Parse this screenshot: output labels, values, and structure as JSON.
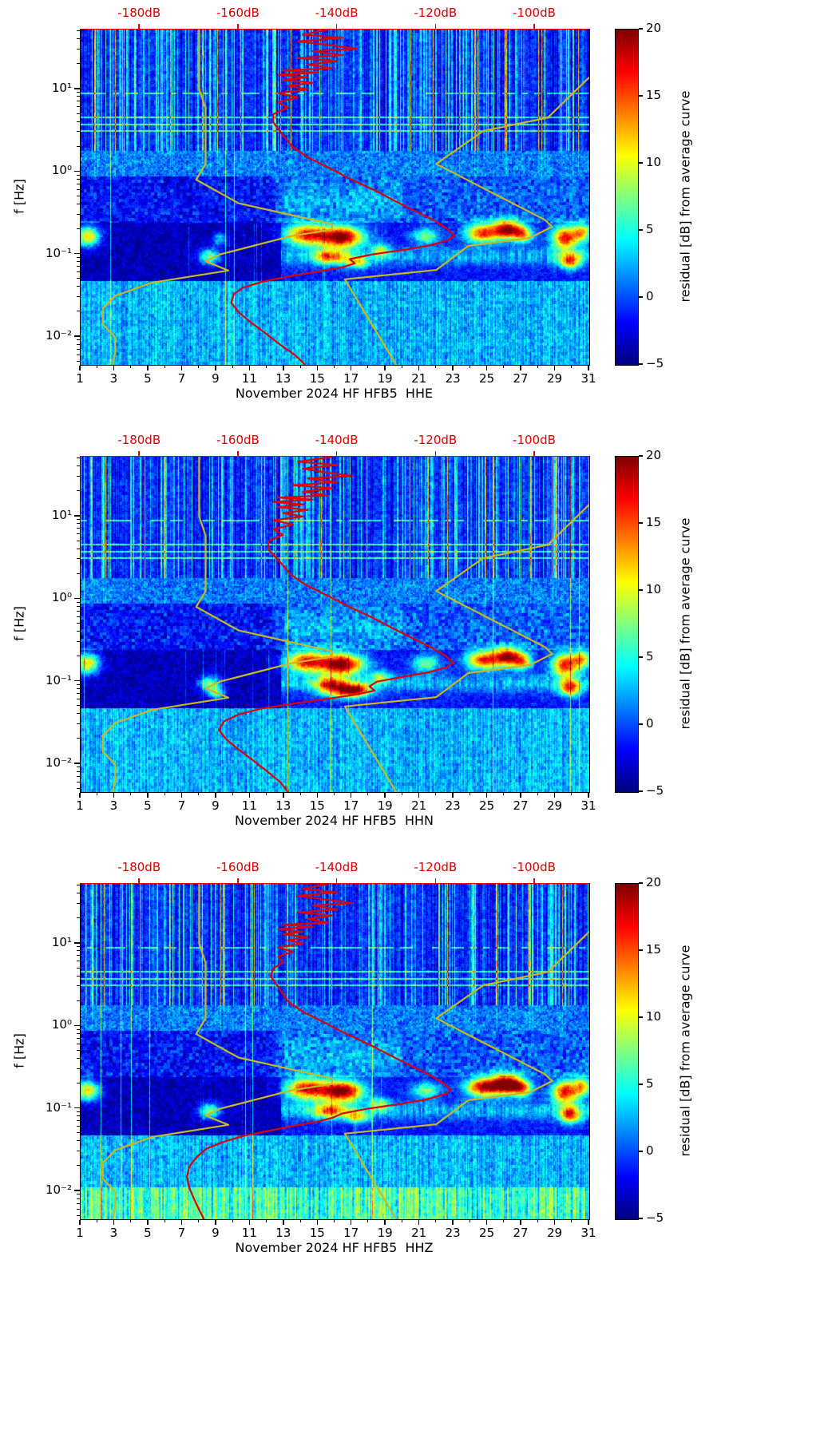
{
  "page": {
    "background": "#ffffff"
  },
  "chart_data": {
    "type": "heatmap",
    "subtype": "seismic spectrogram of PSD residuals with overlaid PSD and Peterson noise-model curves",
    "month_label": "November 2024",
    "station": "HF HFB5",
    "colors": {
      "psd_curve": "#dd0000",
      "model_curve": "#c9b821",
      "top_axis": "#dd0000",
      "axis": "#000000"
    },
    "top_axis": {
      "range_db": [
        -192,
        -89
      ],
      "tick_values": [
        -180,
        -160,
        -140,
        -120,
        -100
      ],
      "tick_labels": [
        "-180dB",
        "-160dB",
        "-140dB",
        "-120dB",
        "-100dB"
      ]
    },
    "x_axis": {
      "range_days": [
        1,
        31
      ],
      "ticks": [
        1,
        3,
        5,
        7,
        9,
        11,
        13,
        15,
        17,
        19,
        21,
        23,
        25,
        27,
        29,
        31
      ]
    },
    "y_axis": {
      "label": "f [Hz]",
      "scale": "log",
      "range_hz": [
        0.0046,
        53
      ],
      "ticks": [
        {
          "f": 0.01,
          "label": "10⁻²"
        },
        {
          "f": 0.1,
          "label": "10⁻¹"
        },
        {
          "f": 1,
          "label": "10⁰"
        },
        {
          "f": 10,
          "label": "10¹"
        }
      ]
    },
    "colorbar": {
      "label": "residual [dB] from average curve",
      "range": [
        -5,
        20
      ],
      "colormap": "jet",
      "ticks": [
        {
          "v": 20,
          "label": "20"
        },
        {
          "v": 15,
          "label": "15"
        },
        {
          "v": 10,
          "label": "10"
        },
        {
          "v": 5,
          "label": "5"
        },
        {
          "v": 0,
          "label": "0"
        },
        {
          "v": -5,
          "label": "−5"
        }
      ]
    },
    "overlay_models": {
      "nlnm": [
        [
          53,
          -168
        ],
        [
          10,
          -168
        ],
        [
          5.88,
          -166.7
        ],
        [
          2.5,
          -166.7
        ],
        [
          1.25,
          -166.7
        ],
        [
          0.806,
          -168.6
        ],
        [
          0.417,
          -160.0
        ],
        [
          0.233,
          -141.1
        ],
        [
          0.2,
          -141.1
        ],
        [
          0.167,
          -149.4
        ],
        [
          0.1,
          -163.8
        ],
        [
          0.083,
          -166.7
        ],
        [
          0.064,
          -162.1
        ],
        [
          0.0457,
          -177.5
        ],
        [
          0.0316,
          -185.0
        ],
        [
          0.0222,
          -187.5
        ],
        [
          0.0143,
          -187.5
        ],
        [
          0.0099,
          -185.0
        ],
        [
          0.0065,
          -185.0
        ],
        [
          0.0046,
          -185.5
        ]
      ],
      "nhnm": [
        [
          14,
          -89
        ],
        [
          10,
          -91.5
        ],
        [
          4.55,
          -97.4
        ],
        [
          3.13,
          -110.5
        ],
        [
          1.25,
          -120.0
        ],
        [
          0.263,
          -98.0
        ],
        [
          0.217,
          -96.5
        ],
        [
          0.159,
          -101.0
        ],
        [
          0.127,
          -113.5
        ],
        [
          0.0649,
          -120.0
        ],
        [
          0.05,
          -138.5
        ],
        [
          0.02,
          -134.5
        ],
        [
          0.01,
          -131.5
        ],
        [
          0.0046,
          -128.1
        ]
      ]
    },
    "heatmap": {
      "value_units": "dB residual from average curve",
      "blobs": [
        [
          1.4,
          -0.78,
          0.5,
          0.09,
          15
        ],
        [
          8.6,
          -1.03,
          0.45,
          0.07,
          11
        ],
        [
          14.3,
          -0.76,
          0.85,
          0.09,
          18
        ],
        [
          16.4,
          -0.79,
          0.9,
          0.09,
          22
        ],
        [
          15.7,
          -1.03,
          0.7,
          0.06,
          13
        ],
        [
          17.3,
          -1.1,
          0.5,
          0.05,
          11
        ],
        [
          18.7,
          -0.95,
          0.4,
          0.06,
          8
        ],
        [
          21.4,
          -0.78,
          0.55,
          0.07,
          9
        ],
        [
          24.7,
          -0.74,
          0.7,
          0.08,
          17
        ],
        [
          26.2,
          -0.7,
          0.6,
          0.08,
          20
        ],
        [
          27.1,
          -0.76,
          0.4,
          0.07,
          12
        ],
        [
          29.6,
          -0.8,
          0.55,
          0.1,
          18
        ],
        [
          29.9,
          -1.08,
          0.45,
          0.07,
          15
        ],
        [
          30.6,
          -0.73,
          0.4,
          0.08,
          12
        ]
      ]
    },
    "panels": [
      {
        "channel": "HHE",
        "xlabel": "November 2024 HF HFB5  HHE",
        "seed": 101,
        "bright_low_band": false,
        "extra_blobs": [
          [
            9.2,
            -0.82,
            0.3,
            0.06,
            7
          ]
        ],
        "psd_curve": [
          [
            53,
            -142
          ],
          [
            46,
            -147
          ],
          [
            42,
            -139
          ],
          [
            38,
            -148
          ],
          [
            34,
            -141
          ],
          [
            31,
            -136
          ],
          [
            29,
            -145
          ],
          [
            26,
            -139
          ],
          [
            24,
            -148
          ],
          [
            22,
            -140
          ],
          [
            20,
            -146
          ],
          [
            18,
            -141
          ],
          [
            17,
            -151
          ],
          [
            16,
            -144
          ],
          [
            15,
            -152
          ],
          [
            14,
            -146
          ],
          [
            13,
            -151
          ],
          [
            12,
            -145
          ],
          [
            11,
            -150
          ],
          [
            10,
            -146
          ],
          [
            9,
            -152
          ],
          [
            8,
            -148
          ],
          [
            7,
            -152
          ],
          [
            6,
            -150
          ],
          [
            5,
            -153
          ],
          [
            4,
            -153
          ],
          [
            3,
            -151.5
          ],
          [
            2,
            -149
          ],
          [
            1.5,
            -146
          ],
          [
            1.1,
            -141.5
          ],
          [
            0.8,
            -137
          ],
          [
            0.6,
            -132.5
          ],
          [
            0.45,
            -128.5
          ],
          [
            0.33,
            -124
          ],
          [
            0.26,
            -120.5
          ],
          [
            0.21,
            -118
          ],
          [
            0.17,
            -116.3
          ],
          [
            0.15,
            -117.5
          ],
          [
            0.13,
            -121
          ],
          [
            0.115,
            -126
          ],
          [
            0.1,
            -133
          ],
          [
            0.088,
            -137.5
          ],
          [
            0.078,
            -136.5
          ],
          [
            0.07,
            -139
          ],
          [
            0.062,
            -144
          ],
          [
            0.054,
            -150
          ],
          [
            0.047,
            -155
          ],
          [
            0.04,
            -159
          ],
          [
            0.033,
            -161
          ],
          [
            0.026,
            -161.5
          ],
          [
            0.02,
            -160
          ],
          [
            0.015,
            -157.5
          ],
          [
            0.011,
            -154.5
          ],
          [
            0.008,
            -151.5
          ],
          [
            0.006,
            -148.5
          ],
          [
            0.0046,
            -146.5
          ]
        ]
      },
      {
        "channel": "HHN",
        "xlabel": "November 2024 HF HFB5  HHN",
        "seed": 202,
        "bright_low_band": false,
        "extra_blobs": [
          [
            16.6,
            -1.12,
            0.9,
            0.06,
            14
          ],
          [
            9.0,
            -1.15,
            0.3,
            0.05,
            9
          ]
        ],
        "psd_curve": [
          [
            53,
            -141
          ],
          [
            46,
            -148
          ],
          [
            42,
            -140
          ],
          [
            38,
            -147
          ],
          [
            34,
            -142
          ],
          [
            31,
            -137
          ],
          [
            29,
            -146
          ],
          [
            26,
            -140
          ],
          [
            24,
            -149
          ],
          [
            22,
            -141
          ],
          [
            20,
            -147
          ],
          [
            18,
            -142
          ],
          [
            17,
            -152
          ],
          [
            16,
            -145
          ],
          [
            15,
            -153
          ],
          [
            14,
            -147
          ],
          [
            13,
            -152
          ],
          [
            12,
            -146
          ],
          [
            11,
            -151
          ],
          [
            10,
            -147
          ],
          [
            9,
            -153
          ],
          [
            8,
            -149
          ],
          [
            7,
            -153
          ],
          [
            6,
            -151
          ],
          [
            5,
            -154
          ],
          [
            4,
            -154
          ],
          [
            3,
            -152
          ],
          [
            2,
            -149.5
          ],
          [
            1.5,
            -146.5
          ],
          [
            1.1,
            -142
          ],
          [
            0.8,
            -137.5
          ],
          [
            0.6,
            -133
          ],
          [
            0.45,
            -129
          ],
          [
            0.33,
            -124.5
          ],
          [
            0.26,
            -121
          ],
          [
            0.21,
            -118.3
          ],
          [
            0.17,
            -116.5
          ],
          [
            0.15,
            -117.8
          ],
          [
            0.13,
            -121.5
          ],
          [
            0.115,
            -126.5
          ],
          [
            0.1,
            -132
          ],
          [
            0.088,
            -133.5
          ],
          [
            0.078,
            -132.5
          ],
          [
            0.07,
            -136
          ],
          [
            0.062,
            -142
          ],
          [
            0.054,
            -149
          ],
          [
            0.047,
            -155.5
          ],
          [
            0.04,
            -160
          ],
          [
            0.033,
            -163
          ],
          [
            0.026,
            -164
          ],
          [
            0.02,
            -162.5
          ],
          [
            0.015,
            -160
          ],
          [
            0.011,
            -157
          ],
          [
            0.008,
            -154
          ],
          [
            0.006,
            -151.5
          ],
          [
            0.0046,
            -150
          ]
        ]
      },
      {
        "channel": "HHZ",
        "xlabel": "November 2024 HF HFB5  HHZ",
        "seed": 303,
        "bright_low_band": true,
        "extra_blobs": [
          [
            25.8,
            -0.72,
            0.9,
            0.08,
            6
          ]
        ],
        "psd_curve": [
          [
            53,
            -142
          ],
          [
            46,
            -147
          ],
          [
            42,
            -140
          ],
          [
            38,
            -148
          ],
          [
            34,
            -142
          ],
          [
            31,
            -137
          ],
          [
            29,
            -145
          ],
          [
            26,
            -140
          ],
          [
            24,
            -148
          ],
          [
            22,
            -141
          ],
          [
            20,
            -146
          ],
          [
            18,
            -142
          ],
          [
            17,
            -151
          ],
          [
            16,
            -145
          ],
          [
            15,
            -152
          ],
          [
            14,
            -147
          ],
          [
            13,
            -151
          ],
          [
            12,
            -146
          ],
          [
            11,
            -150
          ],
          [
            10,
            -147
          ],
          [
            9,
            -152
          ],
          [
            8,
            -149
          ],
          [
            7,
            -152
          ],
          [
            6,
            -151
          ],
          [
            5,
            -153
          ],
          [
            4,
            -153.5
          ],
          [
            3,
            -152
          ],
          [
            2,
            -150
          ],
          [
            1.5,
            -147
          ],
          [
            1.1,
            -142.5
          ],
          [
            0.8,
            -138
          ],
          [
            0.6,
            -133.5
          ],
          [
            0.45,
            -129.5
          ],
          [
            0.33,
            -125
          ],
          [
            0.26,
            -121.5
          ],
          [
            0.21,
            -118.8
          ],
          [
            0.17,
            -117
          ],
          [
            0.15,
            -118.3
          ],
          [
            0.13,
            -122
          ],
          [
            0.115,
            -127
          ],
          [
            0.1,
            -134
          ],
          [
            0.088,
            -139
          ],
          [
            0.078,
            -141
          ],
          [
            0.07,
            -144
          ],
          [
            0.062,
            -149
          ],
          [
            0.054,
            -154
          ],
          [
            0.047,
            -159
          ],
          [
            0.04,
            -163
          ],
          [
            0.033,
            -166.5
          ],
          [
            0.026,
            -168.5
          ],
          [
            0.02,
            -170
          ],
          [
            0.015,
            -170.5
          ],
          [
            0.011,
            -170
          ],
          [
            0.008,
            -169
          ],
          [
            0.006,
            -168
          ],
          [
            0.0046,
            -167
          ]
        ]
      }
    ]
  }
}
